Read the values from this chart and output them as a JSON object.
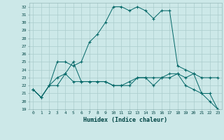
{
  "xlabel": "Humidex (Indice chaleur)",
  "ylabel": "",
  "background_color": "#cce8e8",
  "grid_color": "#aacccc",
  "line_color": "#006666",
  "xlim": [
    -0.5,
    23.5
  ],
  "ylim": [
    19,
    32.5
  ],
  "yticks": [
    19,
    20,
    21,
    22,
    23,
    24,
    25,
    26,
    27,
    28,
    29,
    30,
    31,
    32
  ],
  "xticks": [
    0,
    1,
    2,
    3,
    4,
    5,
    6,
    7,
    8,
    9,
    10,
    11,
    12,
    13,
    14,
    15,
    16,
    17,
    18,
    19,
    20,
    21,
    22,
    23
  ],
  "line1_y": [
    21.5,
    20.5,
    22.0,
    25.0,
    25.0,
    24.5,
    25.0,
    27.5,
    28.5,
    30.0,
    32.0,
    32.0,
    31.5,
    32.0,
    31.5,
    30.5,
    31.5,
    31.5,
    24.5,
    24.0,
    23.5,
    21.0,
    21.0,
    19.0
  ],
  "line2_y": [
    21.5,
    20.5,
    22.0,
    23.0,
    23.5,
    22.5,
    22.5,
    22.5,
    22.5,
    22.5,
    22.0,
    22.0,
    22.0,
    23.0,
    23.0,
    22.0,
    23.0,
    23.5,
    23.5,
    22.0,
    21.5,
    21.0,
    20.0,
    19.0
  ],
  "line3_y": [
    21.5,
    20.5,
    22.0,
    22.0,
    23.5,
    25.0,
    22.5,
    22.5,
    22.5,
    22.5,
    22.0,
    22.0,
    22.5,
    23.0,
    23.0,
    23.0,
    23.0,
    23.0,
    23.5,
    23.0,
    23.5,
    23.0,
    23.0,
    23.0
  ]
}
